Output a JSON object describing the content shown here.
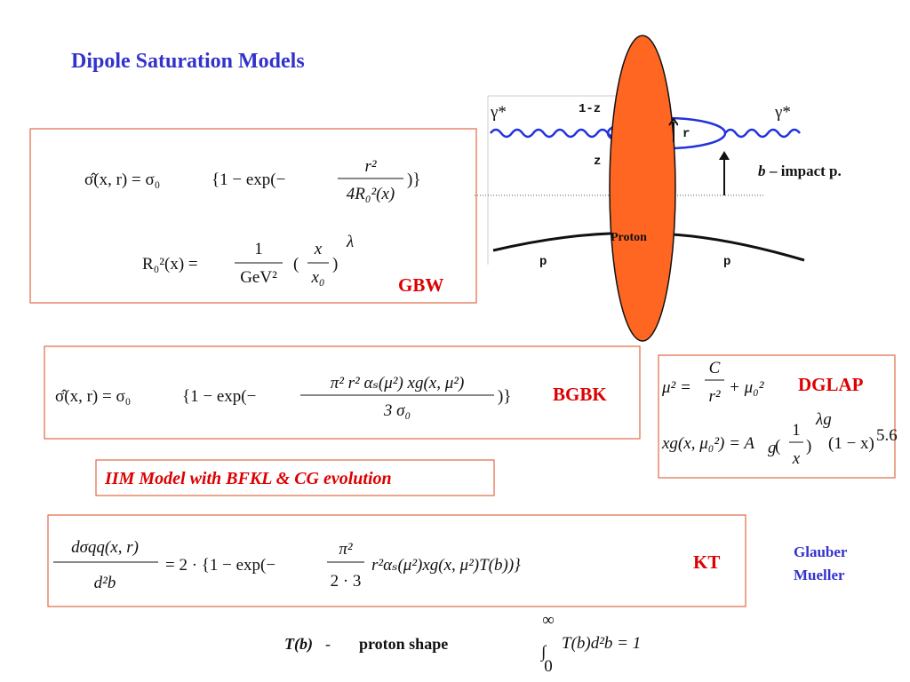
{
  "title": "Dipole Saturation Models",
  "diagram": {
    "gamma_in": "γ*",
    "gamma_out": "γ*",
    "one_minus_z": "1-z",
    "z": "z",
    "r": "r",
    "impact_b": "b",
    "impact_text": "– impact p.",
    "proton": "Proton",
    "p_in": "p",
    "p_out": "p"
  },
  "gbw": {
    "label": "GBW",
    "f1_lhs": "σ̂(x, r)  =  σ₀",
    "f1_open": "{1 − exp(−",
    "f1_num": "r²",
    "f1_den": "4R₀²(x)",
    "f1_close": ")}",
    "f2_lhs": "R₀²(x)  =",
    "f2_num": "1",
    "f2_den": "GeV²",
    "f2_pnum": "x",
    "f2_pden": "x₀",
    "f2_exp": "λ"
  },
  "bgbk": {
    "label": "BGBK",
    "lhs": "σ̂(x, r)  =  σ₀",
    "open": "{1 − exp(−",
    "num": "π² r² αₛ(μ²) xg(x, μ²)",
    "den": "3 σ₀",
    "close": ")}"
  },
  "dglap": {
    "label": "DGLAP",
    "mu_lhs": "μ² =",
    "mu_num": "C",
    "mu_den": "r²",
    "mu_rest": "+ μ₀²",
    "xg_lhs": "xg(x, μ₀²) = A",
    "xg_sub": "g",
    "xg_num": "1",
    "xg_den": "x",
    "xg_exp": "λg",
    "xg_rest": "(1 − x)",
    "xg_pow": "5.6"
  },
  "iim": "IIM Model  with  BFKL & CG evolution",
  "kt": {
    "label": "KT",
    "lhs_num": "dσqq(x, r)",
    "lhs_den": "d²b",
    "mid": "= 2 · {1 − exp(−",
    "pi_num": "π²",
    "pi_den": "2 · 3",
    "rest": "r²αₛ(μ²)xg(x, μ²)T(b))}"
  },
  "glauber": [
    "Glauber",
    "Mueller"
  ],
  "tb": {
    "symbol": "T(b)",
    "dash": "-",
    "text": "proton shape",
    "integral": "∫",
    "upper": "∞",
    "lower": "0",
    "integrand": "T(b)d²b = 1"
  }
}
